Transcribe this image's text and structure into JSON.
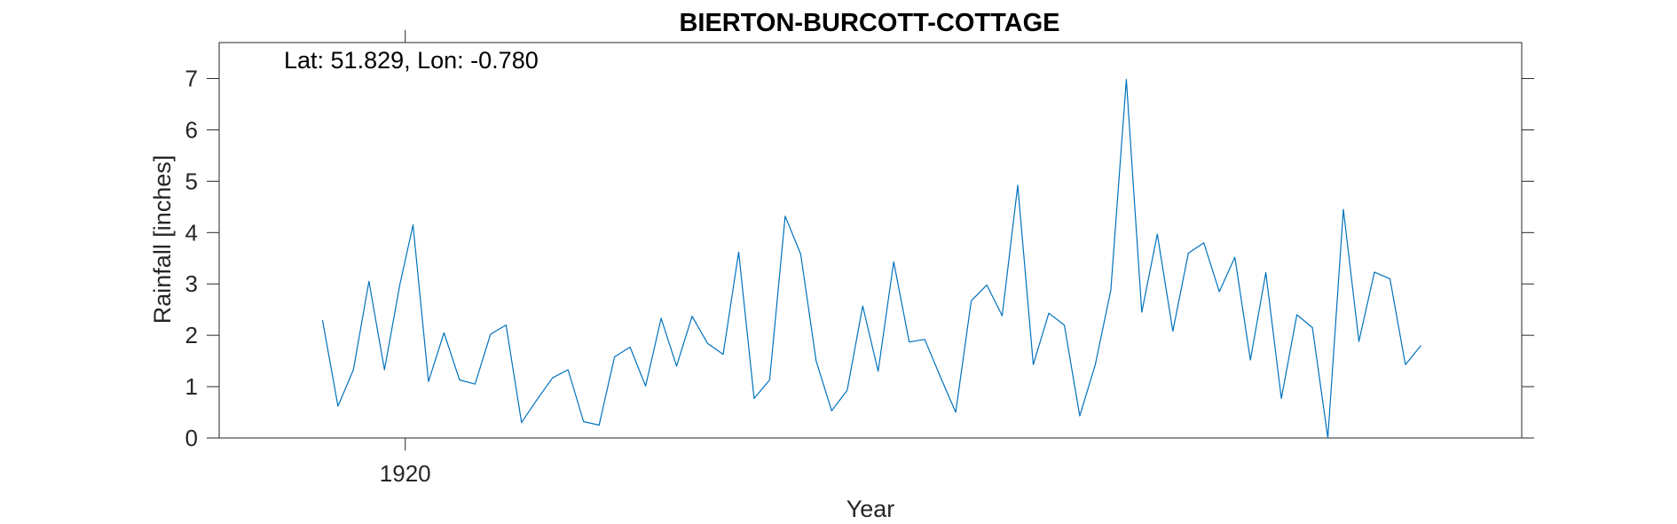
{
  "chart_data": {
    "type": "line",
    "title": "BIERTON-BURCOTT-COTTAGE",
    "annotation": "Lat: 51.829, Lon: -0.780",
    "xlabel": "Year",
    "ylabel": "Rainfall [inches]",
    "xlim": [
      1914.0,
      1956.0
    ],
    "ylim": [
      0,
      7.7
    ],
    "x_ticks": [
      1920
    ],
    "x_tick_labels": [
      "1920"
    ],
    "y_ticks": [
      0,
      1,
      2,
      3,
      4,
      5,
      6,
      7
    ],
    "y_tick_labels": [
      "0",
      "1",
      "2",
      "3",
      "4",
      "5",
      "6",
      "7"
    ],
    "grid": false,
    "series_color": "#0072BD",
    "series": [
      {
        "x": [
          1917.33,
          1917.83,
          1918.33,
          1918.83,
          1919.33,
          1919.83,
          1920.25,
          1920.75,
          1921.25,
          1921.75,
          1922.25,
          1922.75,
          1923.25,
          1923.75,
          1924.25,
          1924.75,
          1925.25,
          1925.75,
          1926.25,
          1926.75,
          1927.25,
          1927.75,
          1928.25,
          1928.75,
          1929.25,
          1929.75,
          1930.25,
          1930.75,
          1931.25,
          1931.75,
          1932.25,
          1932.75,
          1933.25,
          1933.75,
          1934.25,
          1934.75,
          1935.25,
          1935.75,
          1936.25,
          1936.75,
          1937.25,
          1937.75,
          1938.25,
          1938.75,
          1939.25,
          1939.75,
          1940.25,
          1940.75,
          1941.25,
          1941.75,
          1942.25,
          1942.75,
          1943.25,
          1943.75,
          1944.25,
          1944.75,
          1945.25,
          1945.75,
          1946.25,
          1946.75,
          1947.25,
          1947.75,
          1948.25,
          1948.75,
          1949.25,
          1949.75,
          1950.25,
          1950.75,
          1951.25,
          1951.75,
          1952.25,
          1952.75
        ],
        "y": [
          2.3,
          0.62,
          1.33,
          3.05,
          1.33,
          3.0,
          4.15,
          1.1,
          2.05,
          1.13,
          1.05,
          2.02,
          2.2,
          0.3,
          0.75,
          1.17,
          1.33,
          0.32,
          0.25,
          1.58,
          1.77,
          1.01,
          2.33,
          1.4,
          2.37,
          1.84,
          1.63,
          3.62,
          0.77,
          1.13,
          4.32,
          3.58,
          1.5,
          0.53,
          0.93,
          2.57,
          1.3,
          3.43,
          1.87,
          1.92,
          1.2,
          0.5,
          2.67,
          2.98,
          2.38,
          4.92,
          1.43,
          2.43,
          2.2,
          0.43,
          1.43,
          2.88,
          6.98,
          2.45,
          3.97,
          2.08,
          3.6,
          3.8,
          2.85,
          3.52,
          1.52,
          3.22,
          0.77,
          2.4,
          2.15,
          0.0,
          4.45,
          1.88,
          3.23,
          3.1,
          1.43,
          1.8
        ]
      }
    ]
  }
}
